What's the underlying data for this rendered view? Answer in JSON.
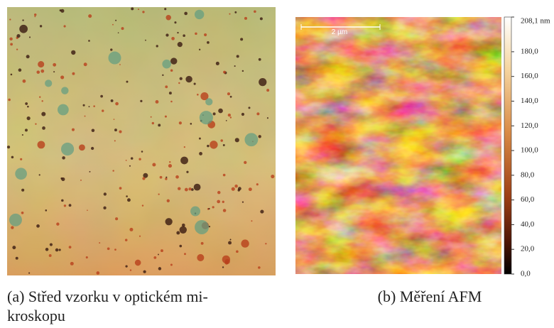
{
  "figure": {
    "panel_a": {
      "caption_lines": [
        "(a) Střed vzorku v optickém mi-",
        "kroskopu"
      ]
    },
    "panel_b": {
      "caption": "(b) Měření AFM",
      "scale_bar": "2 µm",
      "colorbar_ticks": [
        {
          "value": 208.1,
          "label": "208,1 nm"
        },
        {
          "value": 180,
          "label": "180,0"
        },
        {
          "value": 160,
          "label": "160,0"
        },
        {
          "value": 140,
          "label": "140,0"
        },
        {
          "value": 120,
          "label": "120,0"
        },
        {
          "value": 100,
          "label": "100,0"
        },
        {
          "value": 80,
          "label": "80,0"
        },
        {
          "value": 60,
          "label": "60,0"
        },
        {
          "value": 40,
          "label": "40,0"
        },
        {
          "value": 20,
          "label": "20,0"
        },
        {
          "value": 0,
          "label": "0,0"
        }
      ]
    }
  }
}
